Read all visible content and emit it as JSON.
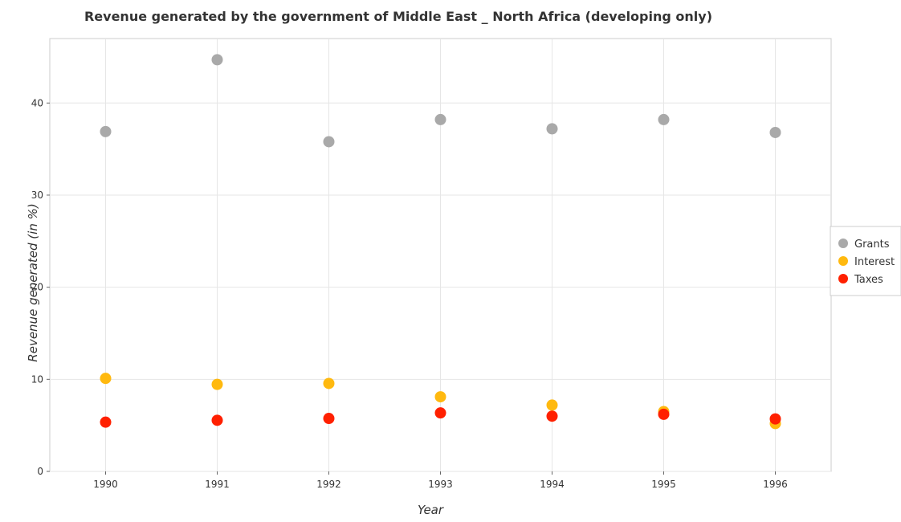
{
  "chart_data": {
    "type": "scatter",
    "title": "Revenue generated by the government of Middle East _ North Africa (developing only)",
    "xlabel": "Year",
    "ylabel": "Revenue generated (in %)",
    "categories": [
      "1990",
      "1991",
      "1992",
      "1993",
      "1994",
      "1995",
      "1996"
    ],
    "ylim": [
      0,
      47
    ],
    "yticks": [
      0,
      10,
      20,
      30,
      40
    ],
    "grid": true,
    "legend_position": "right",
    "series": [
      {
        "name": "Grants",
        "color": "#a9a9a9",
        "values": [
          36.9,
          44.7,
          35.8,
          38.2,
          37.2,
          38.2,
          36.8
        ]
      },
      {
        "name": "Interest",
        "color": "#ffb90f",
        "values": [
          10.1,
          9.45,
          9.55,
          8.1,
          7.2,
          6.5,
          5.2
        ]
      },
      {
        "name": "Taxes",
        "color": "#ff2000",
        "values": [
          5.35,
          5.55,
          5.75,
          6.35,
          6.0,
          6.2,
          5.7
        ]
      }
    ]
  }
}
